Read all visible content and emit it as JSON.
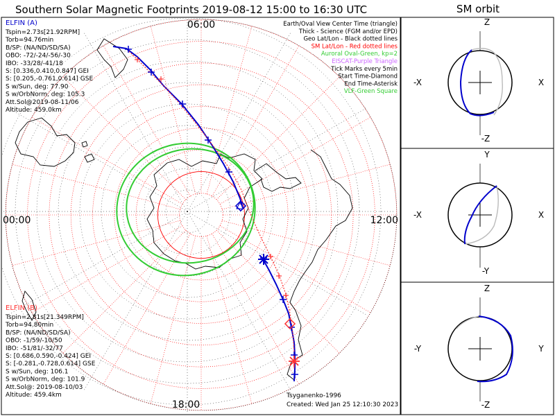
{
  "header": {
    "title": "Southern Solar Magnetic Footprints 2019-08-12 15:00 to 16:30 UTC",
    "sm_orbit_title": "SM orbit"
  },
  "colors": {
    "ela": "#0000cc",
    "elb": "#ff3333",
    "oval": "#33cc33",
    "geo_grid": "#000000",
    "sm_grid": "#ff0000",
    "eiscat": "#cc66ff",
    "text": "#000000"
  },
  "clock_labels": {
    "top": "06:00",
    "left": "00:00",
    "right": "12:00",
    "bottom": "18:00"
  },
  "elfin_a": {
    "name": "ELFIN (A)",
    "lines": [
      "Tspin=2.73s[21.92RPM]",
      "Torb=94.76min",
      "B/SP: (NA/ND/SD/SA)",
      "OBO: -72/-24/-56/-30",
      "IBO: -33/28/-41/18",
      "S: [0.336,0.410,0.847] GEI",
      "S: [0.205,-0.761,0.614] GSE",
      "S w/Sun, deg: 77.90",
      "S w/OrbNorm, deg: 105.3",
      "Att.Sol@2019-08-11/06",
      "Altitude: 459.0km"
    ]
  },
  "elfin_b": {
    "name": "ELFIN (B)",
    "lines": [
      "Tspin=2.81s[21.349RPM]",
      "Torb=94.80min",
      "B/SP: (NA/ND/SD/SA)",
      "OBO: -1/59/-10/50",
      "IBO: -51/81/-32/77",
      "S: [0.686,0.590,-0.424] GEI",
      "S: [-0.281,-0.728,0.614] GSE",
      "S w/Sun, deg: 106.1",
      "S w/OrbNorm, deg: 101.9",
      "Att.Sol@: 2019-08-10/03",
      "Altitude: 459.4km"
    ]
  },
  "legend": [
    {
      "text": "Earth/Oval View Center Time (triangle)",
      "color": "#000000"
    },
    {
      "text": "Thick - Science (FGM and/or EPD)",
      "color": "#000000"
    },
    {
      "text": "Geo Lat/Lon - Black dotted lines",
      "color": "#000000"
    },
    {
      "text": "SM Lat/Lon - Red dotted lines",
      "color": "#ff0000"
    },
    {
      "text": "Auroral Oval-Green, kp=2",
      "color": "#33cc33"
    },
    {
      "text": "EISCAT-Purple Triangle",
      "color": "#cc66ff"
    },
    {
      "text": "Tick Marks every 5min",
      "color": "#000000"
    },
    {
      "text": "Start Time-Diamond",
      "color": "#000000"
    },
    {
      "text": "End Time-Asterisk",
      "color": "#000000"
    },
    {
      "text": "VLF-Green Square",
      "color": "#33cc33"
    }
  ],
  "credits": {
    "model": "Tsyganenko-1996",
    "created": "Created: Wed Jan 25 12:10:30 2023"
  },
  "sm_panels": [
    {
      "up": "Z",
      "down": "-Z",
      "left": "-X",
      "right": "X"
    },
    {
      "up": "Y",
      "down": "-Y",
      "left": "-X",
      "right": "X"
    },
    {
      "up": "Z",
      "down": "-Z",
      "left": "-Y",
      "right": "Y"
    }
  ],
  "chart_data": [
    {
      "type": "scatter",
      "title": "Southern Solar Magnetic Footprints 2019-08-12 15:00 to 16:30 UTC",
      "projection": "south polar stereographic (SM local time)",
      "local_time_labels": [
        "06:00",
        "12:00",
        "18:00",
        "00:00"
      ],
      "series": [
        {
          "name": "ELFIN (A)",
          "color": "#0000cc"
        },
        {
          "name": "ELFIN (B)",
          "color": "#ff3333"
        }
      ]
    },
    {
      "type": "scatter",
      "title": "SM orbit",
      "panels": [
        "X-Z",
        "X-Y",
        "Y-Z"
      ]
    }
  ]
}
